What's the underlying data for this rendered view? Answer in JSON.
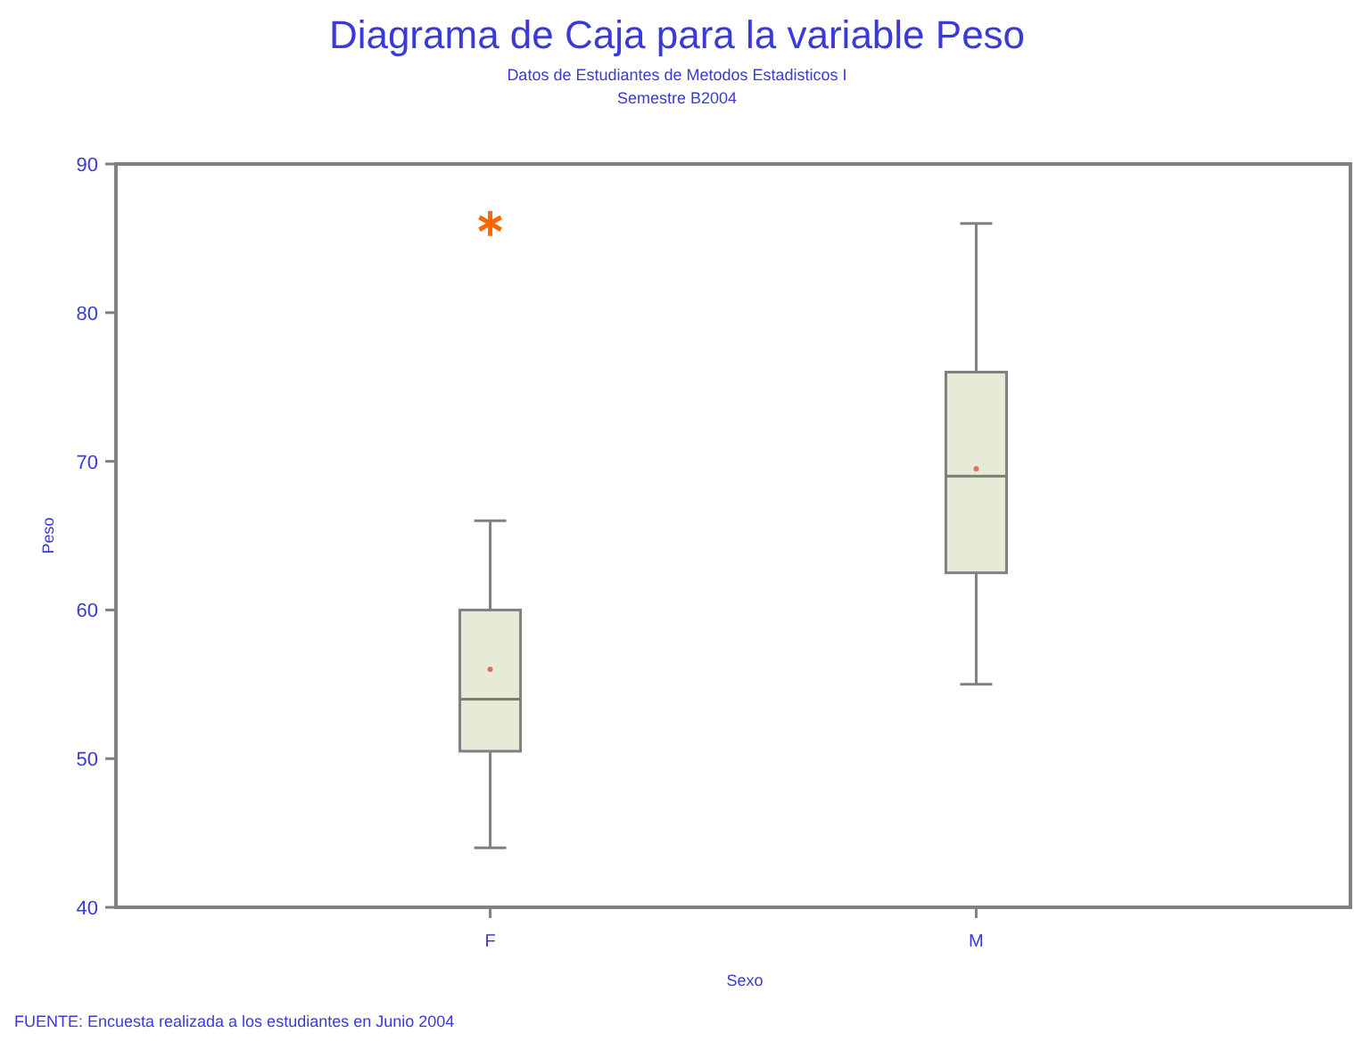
{
  "chart_data": {
    "type": "box",
    "title": "Diagrama de Caja para la variable Peso",
    "subtitle": "Datos de Estudiantes de Metodos Estadisticos I\nSemestre B2004",
    "xlabel": "Sexo",
    "ylabel": "Peso",
    "annotations": [
      "FUENTE: Encuesta realizada a los estudiantes en Junio 2004"
    ],
    "categories": [
      "F",
      "M"
    ],
    "color": "#e6ead6",
    "boxes": [
      {
        "low": 44,
        "q1": 50.5,
        "median": 54,
        "q3": 60,
        "high": 66,
        "mean": 56,
        "outliers": [
          86
        ]
      },
      {
        "low": 55,
        "q1": 62.5,
        "median": 69,
        "q3": 76,
        "high": 86,
        "mean": 69.5
      }
    ],
    "ylim": [
      40,
      90
    ],
    "yticks": [
      40,
      50,
      60,
      70,
      80,
      90
    ],
    "marker": "star",
    "grid": false
  }
}
